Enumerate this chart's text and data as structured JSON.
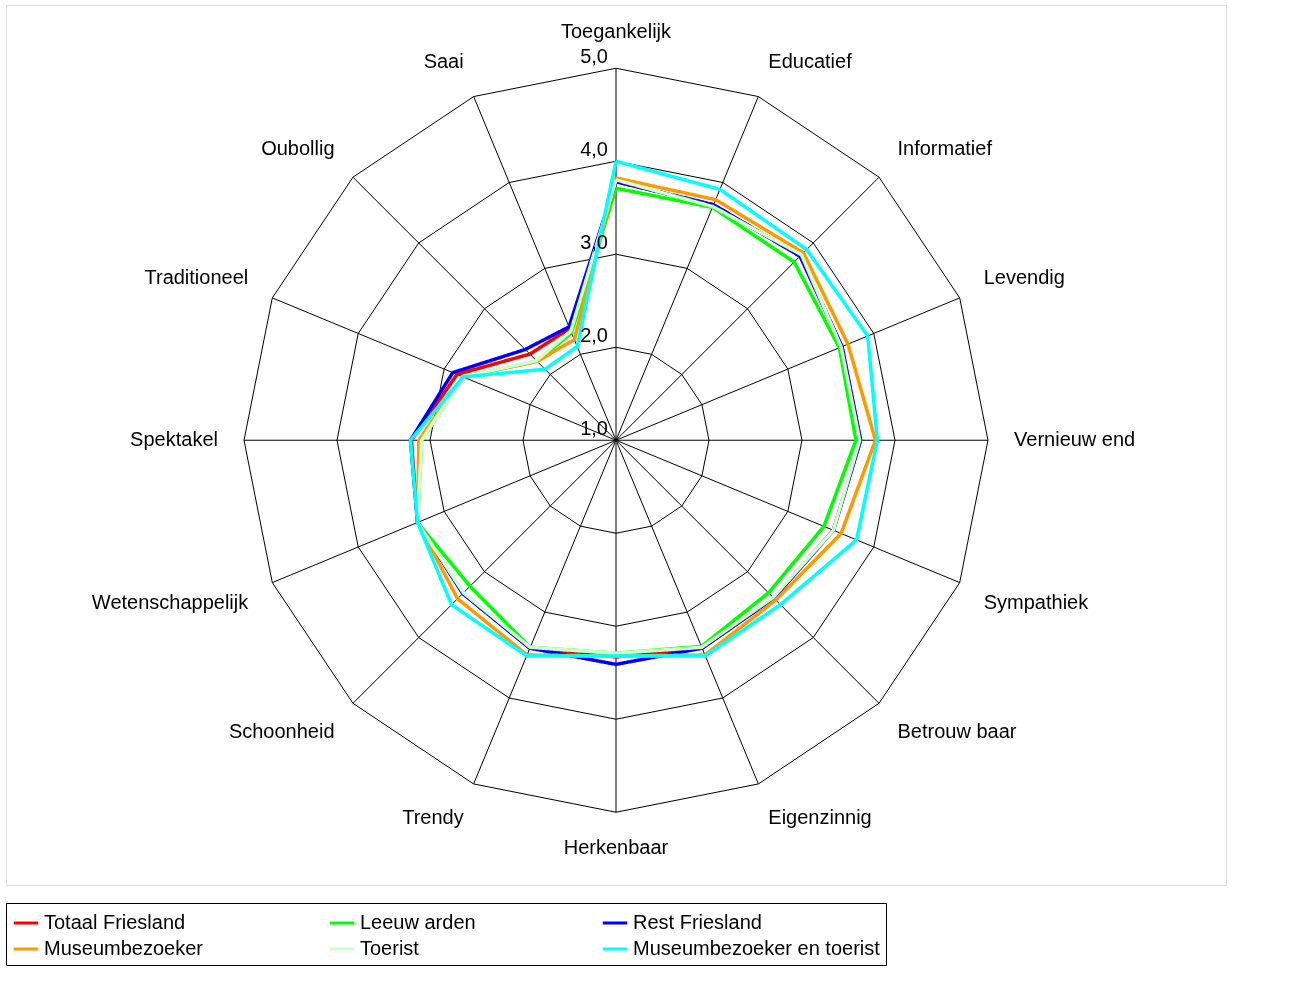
{
  "chart_data": {
    "type": "radar",
    "categories": [
      "Toegankelijk",
      "Educatief",
      "Informatief",
      "Levendig",
      "Vernieuw end",
      "Sympathiek",
      "Betrouw baar",
      "Eigenzinnig",
      "Herkenbaar",
      "Trendy",
      "Schoonheid",
      "Wetenschappelijk",
      "Spektakel",
      "Traditioneel",
      "Oubollig",
      "Saai"
    ],
    "ylim": [
      1,
      5
    ],
    "yticks": [
      {
        "value": 1,
        "label": "1,0"
      },
      {
        "value": 2,
        "label": "2,0"
      },
      {
        "value": 3,
        "label": "3,0"
      },
      {
        "value": 4,
        "label": "4,0"
      },
      {
        "value": 5,
        "label": "5,0"
      }
    ],
    "grid": true,
    "legend": "bottom",
    "marker": "none",
    "line_style": "solid",
    "series": [
      {
        "name": "Totaal Friesland",
        "color": "#ff0000",
        "values": [
          3.78,
          3.74,
          3.8,
          3.63,
          3.63,
          3.53,
          3.4,
          3.42,
          3.33,
          3.42,
          3.33,
          3.31,
          3.2,
          2.85,
          2.31,
          2.3
        ]
      },
      {
        "name": "Leeuw arden",
        "color": "#00ff00",
        "values": [
          3.71,
          3.71,
          3.71,
          3.6,
          3.58,
          3.42,
          3.32,
          3.4,
          3.29,
          3.41,
          3.22,
          3.31,
          3.09,
          2.78,
          2.2,
          2.25
        ]
      },
      {
        "name": "Rest Friesland",
        "color": "#0000ff",
        "values": [
          3.78,
          3.74,
          3.8,
          3.63,
          3.63,
          3.53,
          3.4,
          3.42,
          3.41,
          3.42,
          3.33,
          3.31,
          3.21,
          2.9,
          2.38,
          2.32
        ]
      },
      {
        "name": "Museumbezoeker",
        "color": "#ff9900",
        "values": [
          3.82,
          3.8,
          3.85,
          3.7,
          3.79,
          3.62,
          3.43,
          3.5,
          3.32,
          3.5,
          3.41,
          3.31,
          3.12,
          2.78,
          2.2,
          2.17
        ]
      },
      {
        "name": "Toerist",
        "color": "#ccffcc",
        "values": [
          3.8,
          3.72,
          3.82,
          3.62,
          3.62,
          3.53,
          3.39,
          3.41,
          3.29,
          3.41,
          3.32,
          3.31,
          3.09,
          2.78,
          2.21,
          2.27
        ]
      },
      {
        "name": "Museumbezoeker en toerist",
        "color": "#00ffff",
        "values": [
          4.0,
          3.92,
          3.9,
          3.93,
          3.81,
          3.8,
          3.5,
          3.51,
          3.32,
          3.51,
          3.5,
          3.31,
          3.21,
          2.78,
          2.08,
          2.09
        ]
      }
    ]
  }
}
